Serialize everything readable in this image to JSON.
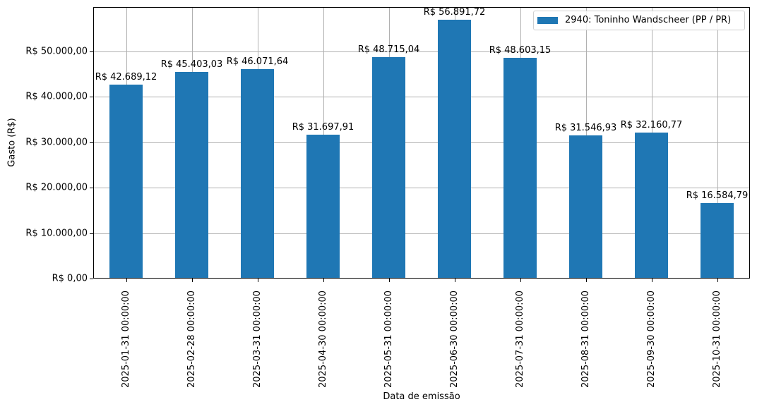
{
  "chart_data": {
    "type": "bar",
    "title": "",
    "xlabel": "Data de emissão",
    "ylabel": "Gasto (R$)",
    "ylim": [
      0,
      59700
    ],
    "grid": true,
    "legend_position": "upper right",
    "categories": [
      "2025-01-31 00:00:00",
      "2025-02-28 00:00:00",
      "2025-03-31 00:00:00",
      "2025-04-30 00:00:00",
      "2025-05-31 00:00:00",
      "2025-06-30 00:00:00",
      "2025-07-31 00:00:00",
      "2025-08-31 00:00:00",
      "2025-09-30 00:00:00",
      "2025-10-31 00:00:00"
    ],
    "series": [
      {
        "name": "2940: Toninho Wandscheer (PP / PR)",
        "color": "#1f77b4",
        "values": [
          42689.12,
          45403.03,
          46071.64,
          31697.91,
          48715.04,
          56891.72,
          48603.15,
          31546.93,
          32160.77,
          16584.79
        ]
      }
    ],
    "data_labels": [
      "R$ 42.689,12",
      "R$ 45.403,03",
      "R$ 46.071,64",
      "R$ 31.697,91",
      "R$ 48.715,04",
      "R$ 56.891,72",
      "R$ 48.603,15",
      "R$ 31.546,93",
      "R$ 32.160,77",
      "R$ 16.584,79"
    ],
    "yticks": [
      0,
      10000,
      20000,
      30000,
      40000,
      50000
    ],
    "ytick_labels": [
      "R$ 0,00",
      "R$ 10.000,00",
      "R$ 20.000,00",
      "R$ 30.000,00",
      "R$ 40.000,00",
      "R$ 50.000,00"
    ]
  }
}
